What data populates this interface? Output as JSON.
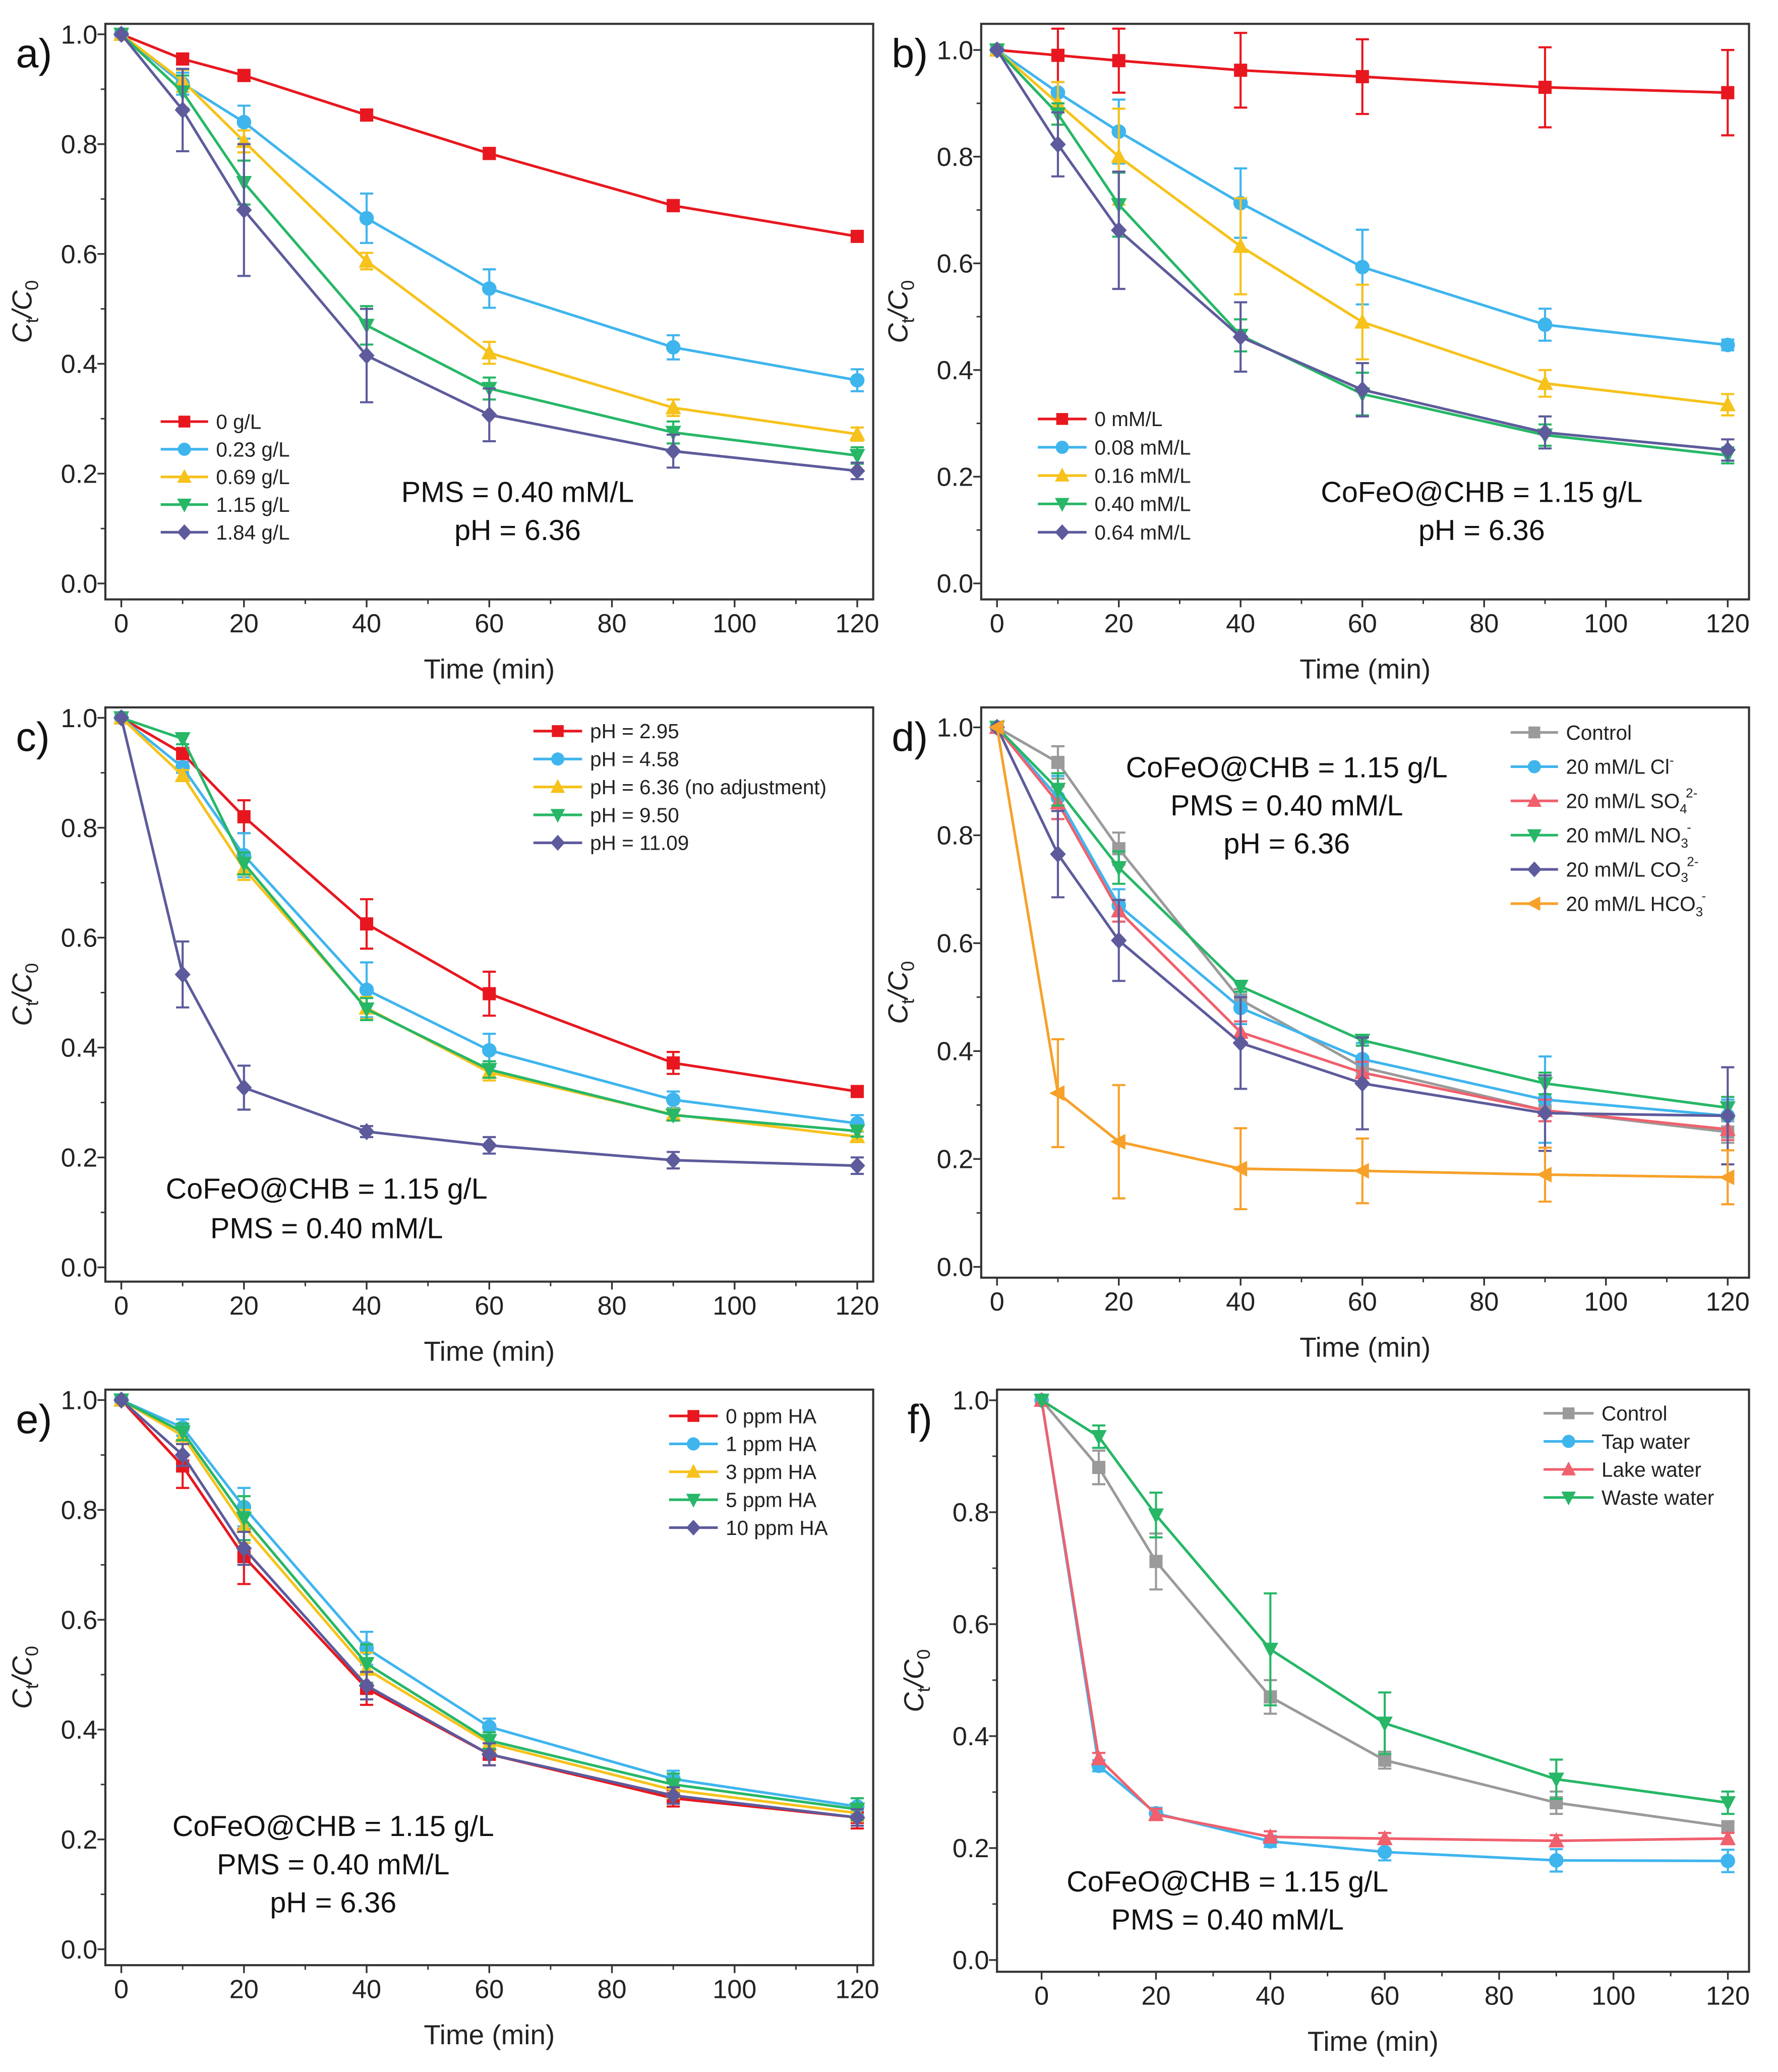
{
  "chart_data": [
    {
      "type": "line",
      "panel_label": "a)",
      "xlabel": "Time (min)",
      "ylabel_parts": [
        "C",
        "t",
        "/C",
        "0"
      ],
      "xlim": [
        -2.6,
        122.6
      ],
      "ylim": [
        -0.029,
        1.019
      ],
      "xticks": [
        0,
        20,
        40,
        60,
        80,
        100,
        120
      ],
      "yticks": [
        "0.0",
        "0.2",
        "0.4",
        "0.6",
        "0.8",
        "1.0"
      ],
      "grid": false,
      "legend_position": "bottom-left",
      "x": [
        0,
        10,
        20,
        40,
        60,
        90,
        120
      ],
      "annotations": [
        "PMS = 0.40 mM/L",
        "pH = 6.36"
      ],
      "series": [
        {
          "name": "0 g/L",
          "color": "#e8171f",
          "marker": "square",
          "values": [
            1,
            0.955,
            0.925,
            0.853,
            0.783,
            0.688,
            0.632
          ],
          "errors": [
            0,
            0.01,
            0.01,
            0.01,
            0.01,
            0.01,
            0.008
          ]
        },
        {
          "name": "0.23 g/L",
          "color": "#3fb5ee",
          "marker": "circle",
          "values": [
            1,
            0.91,
            0.84,
            0.665,
            0.537,
            0.43,
            0.37
          ],
          "errors": [
            0,
            0.02,
            0.03,
            0.045,
            0.035,
            0.022,
            0.02
          ]
        },
        {
          "name": "0.69 g/L",
          "color": "#f6c21b",
          "marker": "triangle-up",
          "values": [
            1,
            0.915,
            0.805,
            0.587,
            0.42,
            0.32,
            0.272
          ],
          "errors": [
            0,
            0.02,
            0.02,
            0.015,
            0.02,
            0.015,
            0.012
          ]
        },
        {
          "name": "1.15 g/L",
          "color": "#27b767",
          "marker": "triangle-down",
          "values": [
            1,
            0.895,
            0.73,
            0.47,
            0.355,
            0.275,
            0.233
          ],
          "errors": [
            0,
            0.03,
            0.04,
            0.035,
            0.02,
            0.02,
            0.015
          ]
        },
        {
          "name": "1.84 g/L",
          "color": "#5d5b9b",
          "marker": "diamond",
          "values": [
            1,
            0.862,
            0.68,
            0.415,
            0.307,
            0.241,
            0.205
          ],
          "errors": [
            0,
            0.075,
            0.12,
            0.085,
            0.048,
            0.03,
            0.015
          ]
        }
      ]
    },
    {
      "type": "line",
      "panel_label": "b)",
      "xlabel": "Time (min)",
      "ylabel_parts": [
        "C",
        "t",
        "/C",
        "0"
      ],
      "xlim": [
        -2.6,
        123.5
      ],
      "ylim": [
        -0.03,
        1.049
      ],
      "xticks": [
        0,
        20,
        40,
        60,
        80,
        100,
        120
      ],
      "yticks": [
        "0.0",
        "0.2",
        "0.4",
        "0.6",
        "0.8",
        "1.0"
      ],
      "grid": false,
      "legend_position": "bottom-left",
      "x": [
        0,
        10,
        20,
        40,
        60,
        90,
        120
      ],
      "annotations": [
        "CoFeO@CHB = 1.15 g/L",
        "pH = 6.36"
      ],
      "series": [
        {
          "name": "0 mM/L",
          "color": "#e8171f",
          "marker": "square",
          "values": [
            1,
            0.99,
            0.98,
            0.962,
            0.95,
            0.93,
            0.92
          ],
          "errors": [
            0,
            0.05,
            0.06,
            0.07,
            0.07,
            0.075,
            0.08
          ]
        },
        {
          "name": "0.08 mM/L",
          "color": "#3fb5ee",
          "marker": "circle",
          "values": [
            1,
            0.92,
            0.847,
            0.713,
            0.593,
            0.485,
            0.447
          ],
          "errors": [
            0,
            0.02,
            0.06,
            0.065,
            0.07,
            0.03,
            0.01
          ]
        },
        {
          "name": "0.16 mM/L",
          "color": "#f6c21b",
          "marker": "triangle-up",
          "values": [
            1,
            0.9,
            0.8,
            0.632,
            0.49,
            0.375,
            0.335
          ],
          "errors": [
            0,
            0.04,
            0.09,
            0.09,
            0.07,
            0.025,
            0.02
          ]
        },
        {
          "name": "0.40 mM/L",
          "color": "#27b767",
          "marker": "triangle-down",
          "values": [
            1,
            0.88,
            0.71,
            0.465,
            0.355,
            0.278,
            0.24
          ],
          "errors": [
            0,
            0.02,
            0.06,
            0.03,
            0.04,
            0.02,
            0.015
          ]
        },
        {
          "name": "0.64 mM/L",
          "color": "#5d5b9b",
          "marker": "diamond",
          "values": [
            1,
            0.823,
            0.662,
            0.462,
            0.363,
            0.283,
            0.25
          ],
          "errors": [
            0,
            0.06,
            0.11,
            0.065,
            0.05,
            0.03,
            0.02
          ]
        }
      ]
    },
    {
      "type": "line",
      "panel_label": "c)",
      "xlabel": "Time (min)",
      "ylabel_parts": [
        "C",
        "t",
        "/C",
        "0"
      ],
      "xlim": [
        -2.6,
        122.6
      ],
      "ylim": [
        -0.026,
        1.019
      ],
      "xticks": [
        0,
        20,
        40,
        60,
        80,
        100,
        120
      ],
      "yticks": [
        "0.0",
        "0.2",
        "0.4",
        "0.6",
        "0.8",
        "1.0"
      ],
      "grid": false,
      "legend_position": "top-right",
      "x": [
        0,
        10,
        20,
        40,
        60,
        90,
        120
      ],
      "annotations": [
        "CoFeO@CHB = 1.15 g/L",
        "PMS = 0.40 mM/L"
      ],
      "series": [
        {
          "name": "pH = 2.95",
          "color": "#e8171f",
          "marker": "square",
          "values": [
            1,
            0.935,
            0.82,
            0.625,
            0.498,
            0.372,
            0.32
          ],
          "errors": [
            0,
            0.01,
            0.03,
            0.045,
            0.04,
            0.02,
            0.01
          ]
        },
        {
          "name": "pH = 4.58",
          "color": "#3fb5ee",
          "marker": "circle",
          "values": [
            1,
            0.91,
            0.75,
            0.505,
            0.395,
            0.305,
            0.262
          ],
          "errors": [
            0,
            0.01,
            0.04,
            0.05,
            0.03,
            0.015,
            0.015
          ]
        },
        {
          "name": "pH = 6.36 (no adjustment)",
          "color": "#f6c21b",
          "marker": "triangle-up",
          "values": [
            1,
            0.895,
            0.725,
            0.472,
            0.355,
            0.278,
            0.238
          ],
          "errors": [
            0,
            0.01,
            0.02,
            0.02,
            0.015,
            0.01,
            0.01
          ]
        },
        {
          "name": "pH = 9.50",
          "color": "#27b767",
          "marker": "triangle-down",
          "values": [
            1,
            0.962,
            0.735,
            0.47,
            0.36,
            0.277,
            0.248
          ],
          "errors": [
            0,
            0.01,
            0.02,
            0.02,
            0.015,
            0.01,
            0.01
          ]
        },
        {
          "name": "pH = 11.09",
          "color": "#5d5b9b",
          "marker": "diamond",
          "values": [
            1,
            0.533,
            0.327,
            0.247,
            0.222,
            0.195,
            0.185
          ],
          "errors": [
            0,
            0.06,
            0.04,
            0.01,
            0.015,
            0.015,
            0.015
          ]
        }
      ]
    },
    {
      "type": "line",
      "panel_label": "d)",
      "xlabel": "Time (min)",
      "ylabel_parts": [
        "C",
        "t",
        "/C",
        "0"
      ],
      "xlim": [
        -2.6,
        123.5
      ],
      "ylim": [
        -0.02,
        1.037
      ],
      "xticks": [
        0,
        20,
        40,
        60,
        80,
        100,
        120
      ],
      "yticks": [
        "0.0",
        "0.2",
        "0.4",
        "0.6",
        "0.8",
        "1.0"
      ],
      "grid": false,
      "legend_position": "top-right",
      "x": [
        0,
        10,
        20,
        40,
        60,
        90,
        120
      ],
      "annotations": [
        "CoFeO@CHB = 1.15 g/L",
        "PMS = 0.40 mM/L",
        "pH = 6.36"
      ],
      "series": [
        {
          "name": "Control",
          "name_sub": "",
          "name_sup": "",
          "color": "#9a9a9a",
          "marker": "square",
          "values": [
            1,
            0.935,
            0.775,
            0.495,
            0.37,
            0.29,
            0.25
          ],
          "errors": [
            0,
            0.03,
            0.03,
            0.02,
            0.02,
            0.02,
            0.02
          ]
        },
        {
          "name": "20 mM/L Cl",
          "name_sub": "",
          "name_sup": "-",
          "color": "#3fb5ee",
          "marker": "circle",
          "values": [
            1,
            0.87,
            0.67,
            0.48,
            0.385,
            0.31,
            0.28
          ],
          "errors": [
            0,
            0.04,
            0.03,
            0.03,
            0.03,
            0.08,
            0.03
          ]
        },
        {
          "name": "20 mM/L SO",
          "name_sub": "4",
          "name_sup": "2-",
          "color": "#f0606d",
          "marker": "triangle-up",
          "values": [
            1,
            0.86,
            0.66,
            0.435,
            0.36,
            0.29,
            0.255
          ],
          "errors": [
            0,
            0.03,
            0.02,
            0.02,
            0.02,
            0.02,
            0.02
          ]
        },
        {
          "name": "20 mM/L NO",
          "name_sub": "3",
          "name_sup": "-",
          "color": "#27b767",
          "marker": "triangle-down",
          "values": [
            1,
            0.885,
            0.74,
            0.52,
            0.42,
            0.34,
            0.295
          ],
          "errors": [
            0,
            0.03,
            0.03,
            0.01,
            0.01,
            0.02,
            0.02
          ]
        },
        {
          "name": "20 mM/L CO",
          "name_sub": "3",
          "name_sup": "2-",
          "color": "#5d5b9b",
          "marker": "diamond",
          "values": [
            1,
            0.765,
            0.605,
            0.415,
            0.34,
            0.285,
            0.28
          ],
          "errors": [
            0,
            0.08,
            0.075,
            0.085,
            0.085,
            0.07,
            0.09
          ]
        },
        {
          "name": "20 mM/L HCO",
          "name_sub": "3",
          "name_sup": "-",
          "color": "#f7a12a",
          "marker": "triangle-left",
          "values": [
            1,
            0.322,
            0.232,
            0.182,
            0.178,
            0.171,
            0.166
          ],
          "errors": [
            0,
            0.1,
            0.105,
            0.075,
            0.06,
            0.05,
            0.05
          ]
        }
      ]
    },
    {
      "type": "line",
      "panel_label": "e)",
      "xlabel": "Time (min)",
      "ylabel_parts": [
        "C",
        "t",
        "/C",
        "0"
      ],
      "xlim": [
        -2.6,
        122.6
      ],
      "ylim": [
        -0.029,
        1.019
      ],
      "xticks": [
        0,
        20,
        40,
        60,
        80,
        100,
        120
      ],
      "yticks": [
        "0.0",
        "0.2",
        "0.4",
        "0.6",
        "0.8",
        "1.0"
      ],
      "grid": false,
      "legend_position": "top-right",
      "x": [
        0,
        10,
        20,
        40,
        60,
        90,
        120
      ],
      "annotations": [
        "CoFeO@CHB = 1.15 g/L",
        "PMS = 0.40 mM/L",
        "pH = 6.36"
      ],
      "series": [
        {
          "name": "0 ppm HA",
          "color": "#e8171f",
          "marker": "square",
          "values": [
            1,
            0.88,
            0.715,
            0.475,
            0.355,
            0.275,
            0.24
          ],
          "errors": [
            0,
            0.04,
            0.05,
            0.03,
            0.02,
            0.015,
            0.02
          ]
        },
        {
          "name": "1 ppm HA",
          "color": "#3fb5ee",
          "marker": "circle",
          "values": [
            1,
            0.95,
            0.805,
            0.548,
            0.405,
            0.31,
            0.26
          ],
          "errors": [
            0,
            0.015,
            0.035,
            0.03,
            0.015,
            0.015,
            0.015
          ]
        },
        {
          "name": "3 ppm HA",
          "color": "#f6c21b",
          "marker": "triangle-up",
          "values": [
            1,
            0.935,
            0.77,
            0.51,
            0.375,
            0.29,
            0.248
          ],
          "errors": [
            0,
            0.015,
            0.03,
            0.03,
            0.015,
            0.015,
            0.015
          ]
        },
        {
          "name": "5 ppm HA",
          "color": "#27b767",
          "marker": "triangle-down",
          "values": [
            1,
            0.942,
            0.785,
            0.52,
            0.38,
            0.3,
            0.255
          ],
          "errors": [
            0,
            0.015,
            0.04,
            0.035,
            0.015,
            0.02,
            0.02
          ]
        },
        {
          "name": "10 ppm HA",
          "color": "#5d5b9b",
          "marker": "diamond",
          "values": [
            1,
            0.9,
            0.73,
            0.48,
            0.355,
            0.28,
            0.24
          ],
          "errors": [
            0,
            0.02,
            0.03,
            0.025,
            0.02,
            0.015,
            0.015
          ]
        }
      ]
    },
    {
      "type": "line",
      "panel_label": "f)",
      "xlabel": "Time (min)",
      "ylabel_parts": [
        "C",
        "t",
        "/C",
        "0"
      ],
      "xlim": [
        -7.8,
        123.7
      ],
      "ylim": [
        -0.021,
        1.019
      ],
      "xticks": [
        0,
        20,
        40,
        60,
        80,
        100,
        120
      ],
      "yticks": [
        "0.0",
        "0.2",
        "0.4",
        "0.6",
        "0.8",
        "1.0"
      ],
      "grid": false,
      "legend_position": "top-right",
      "x": [
        0,
        10,
        20,
        40,
        60,
        90,
        120
      ],
      "annotations": [
        "CoFeO@CHB = 1.15 g/L",
        "PMS = 0.40 mM/L"
      ],
      "series": [
        {
          "name": "Control",
          "color": "#9a9a9a",
          "marker": "square",
          "values": [
            1,
            0.88,
            0.712,
            0.47,
            0.357,
            0.281,
            0.238
          ],
          "errors": [
            0,
            0.03,
            0.05,
            0.03,
            0.015,
            0.02,
            0.01
          ]
        },
        {
          "name": "Tap water",
          "color": "#3fb5ee",
          "marker": "circle",
          "values": [
            1,
            0.347,
            0.262,
            0.212,
            0.193,
            0.178,
            0.177
          ],
          "errors": [
            0,
            0.01,
            0.01,
            0.01,
            0.015,
            0.02,
            0.02
          ]
        },
        {
          "name": "Lake water",
          "color": "#f0606d",
          "marker": "triangle-up",
          "values": [
            1,
            0.36,
            0.26,
            0.22,
            0.217,
            0.213,
            0.217
          ],
          "errors": [
            0,
            0.01,
            0.01,
            0.01,
            0.01,
            0.01,
            0.01
          ]
        },
        {
          "name": "Waste water",
          "color": "#27b767",
          "marker": "triangle-down",
          "values": [
            1,
            0.935,
            0.795,
            0.555,
            0.423,
            0.323,
            0.281
          ],
          "errors": [
            0,
            0.02,
            0.04,
            0.1,
            0.055,
            0.035,
            0.02
          ]
        }
      ]
    }
  ]
}
